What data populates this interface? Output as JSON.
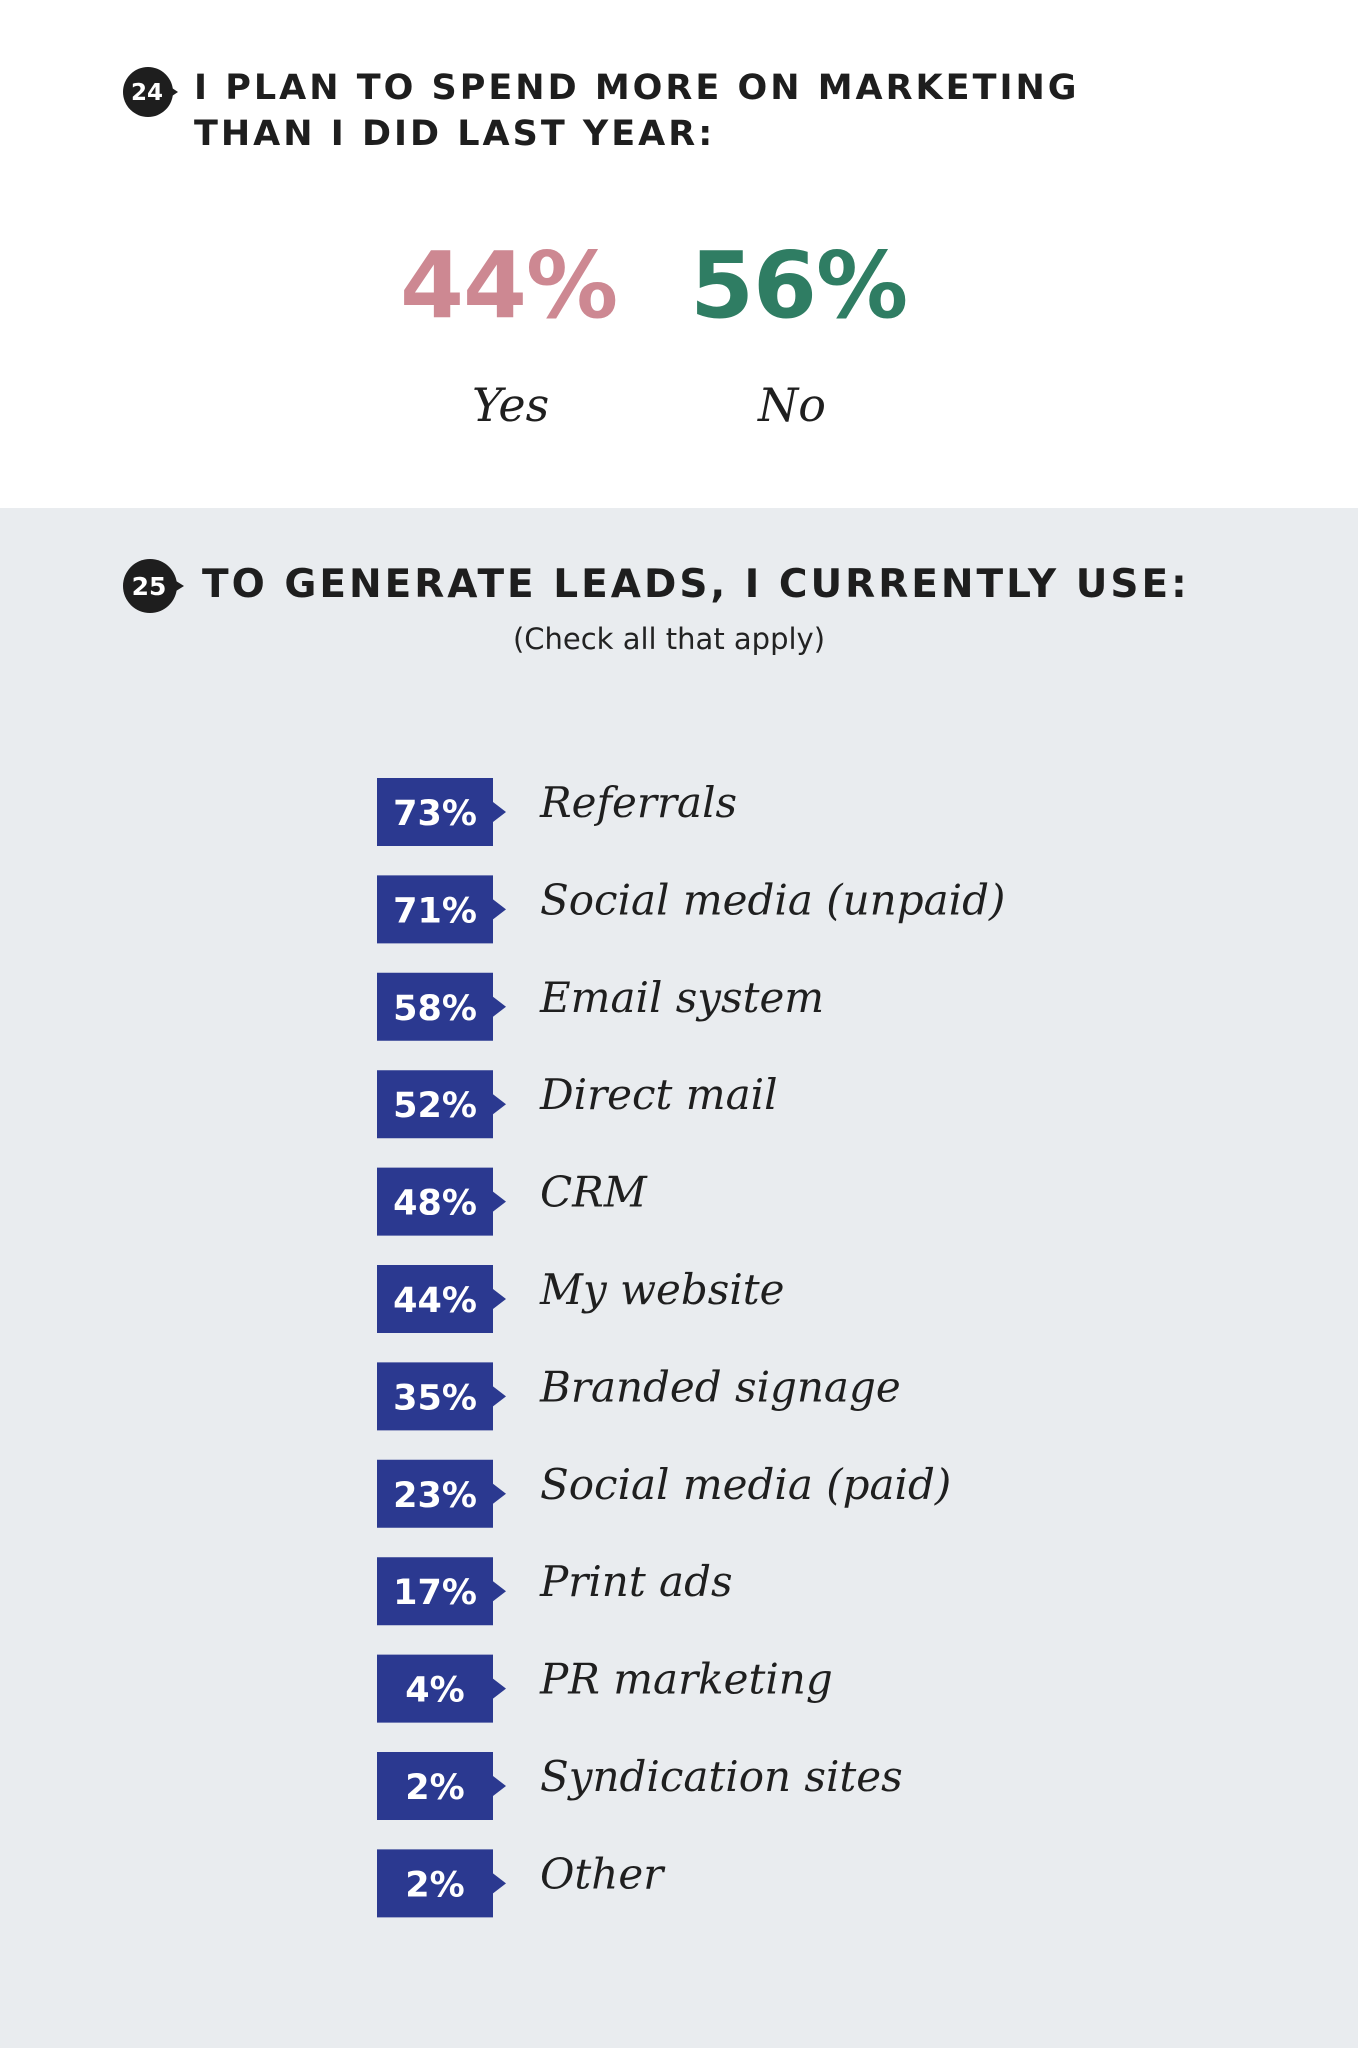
{
  "q24": {
    "number": "24",
    "title_line1": "I PLAN TO SPEND MORE ON MARKETING",
    "title_line2": "THAN I DID LAST YEAR:",
    "yes_value": "44%",
    "yes_label": "Yes",
    "no_value": "56%",
    "no_label": "No"
  },
  "q25": {
    "number": "25",
    "title": "TO GENERATE LEADS, I CURRENTLY USE:",
    "subtitle": "(Check all that apply)"
  },
  "colors": {
    "yes": "#cd8892",
    "no": "#2f7d63",
    "badge": "#2b3990",
    "lower_bg": "#e9ecef"
  },
  "chart_data": [
    {
      "type": "pie",
      "title": "I PLAN TO SPEND MORE ON MARKETING THAN I DID LAST YEAR:",
      "categories": [
        "Yes",
        "No"
      ],
      "values": [
        44,
        56
      ]
    },
    {
      "type": "table",
      "title": "TO GENERATE LEADS, I CURRENTLY USE:",
      "subtitle": "(Check all that apply)",
      "categories": [
        "Referrals",
        "Social media (unpaid)",
        "Email system",
        "Direct mail",
        "CRM",
        "My website",
        "Branded signage",
        "Social media (paid)",
        "Print ads",
        "PR marketing",
        "Syndication sites",
        "Other"
      ],
      "values": [
        73,
        71,
        58,
        52,
        48,
        44,
        35,
        23,
        17,
        4,
        2,
        2
      ],
      "value_labels": [
        "73%",
        "71%",
        "58%",
        "52%",
        "48%",
        "44%",
        "35%",
        "23%",
        "17%",
        "4%",
        "2%",
        "2%"
      ]
    }
  ]
}
